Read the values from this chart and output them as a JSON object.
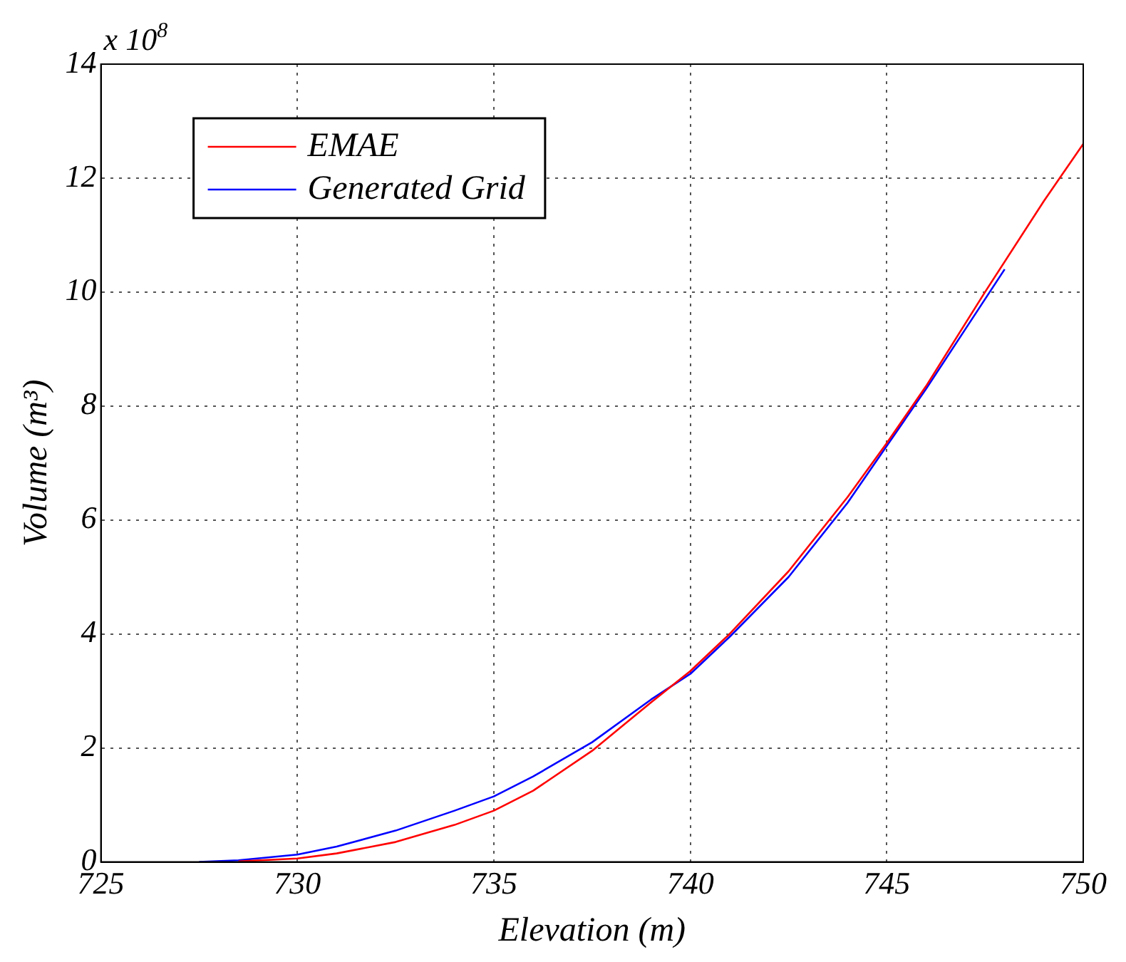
{
  "chart_data": {
    "type": "line",
    "xlabel": "Elevation (m)",
    "ylabel": "Volume (m³)",
    "annotations": [
      "x 10$^{8}$"
    ],
    "xlim": [
      725,
      750
    ],
    "xticks": [
      725,
      730,
      735,
      740,
      745,
      750
    ],
    "ylim": [
      0,
      14
    ],
    "yticks": [
      0,
      2,
      4,
      6,
      8,
      10,
      12,
      14
    ],
    "grid": true,
    "legend": "top left",
    "marker": "none",
    "line_style": "solid",
    "series": [
      {
        "name": "EMAE",
        "color": "#ff0000",
        "x": [
          728.5,
          730,
          731,
          732.5,
          734,
          735,
          736,
          737.5,
          739,
          740,
          741,
          742.5,
          744,
          745,
          746,
          747.5,
          749,
          750
        ],
        "values": [
          0.01,
          0.06,
          0.15,
          0.35,
          0.65,
          0.9,
          1.25,
          1.95,
          2.8,
          3.35,
          4.0,
          5.1,
          6.4,
          7.35,
          8.35,
          10.0,
          11.6,
          12.6
        ]
      },
      {
        "name": "Generated Grid",
        "color": "#0000ff",
        "x": [
          727.5,
          728.5,
          730,
          731,
          732.5,
          734,
          735,
          736,
          737.5,
          739,
          740,
          741,
          742.5,
          744,
          745,
          746,
          747,
          748
        ],
        "values": [
          0,
          0.03,
          0.13,
          0.27,
          0.55,
          0.9,
          1.15,
          1.5,
          2.1,
          2.85,
          3.3,
          3.95,
          5.0,
          6.3,
          7.3,
          8.3,
          9.35,
          10.4
        ]
      }
    ]
  }
}
